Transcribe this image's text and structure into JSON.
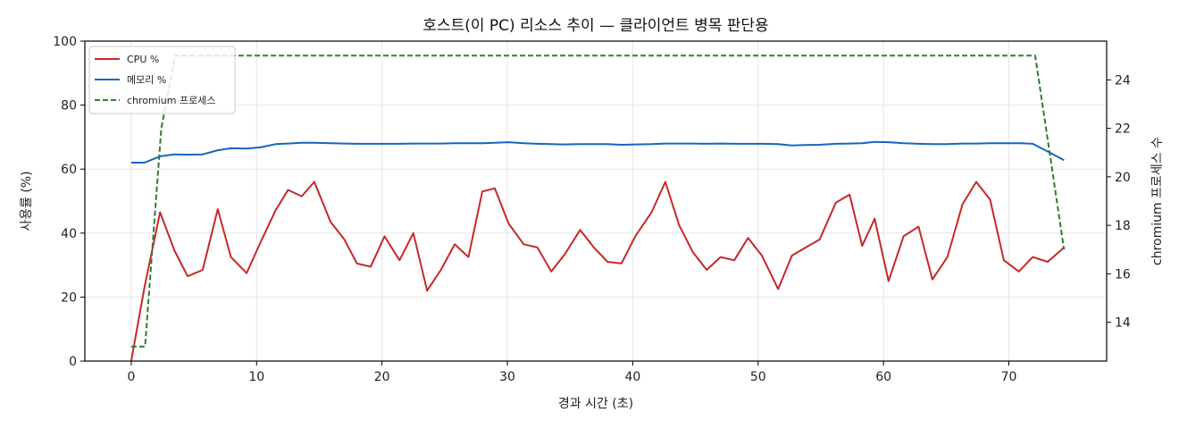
{
  "chart_data": {
    "type": "line",
    "title": "호스트(이 PC) 리소스 추이 — 클라이언트 병목 판단용",
    "xlabel": "경과 시간 (초)",
    "ylabel": "사용률 (%)",
    "y2label": "chromium 프로세스 수",
    "xlim": [
      -3.7,
      77.8
    ],
    "ylim": [
      0,
      100
    ],
    "y2lim": [
      12.4,
      25.6
    ],
    "xticks": [
      0,
      10,
      20,
      30,
      40,
      50,
      60,
      70
    ],
    "yticks": [
      0,
      20,
      40,
      60,
      80,
      100
    ],
    "y2ticks": [
      14,
      16,
      18,
      20,
      22,
      24
    ],
    "grid": true,
    "legend_position": "top-left",
    "colors": {
      "cpu": "#c62828",
      "mem": "#1565c0",
      "chromium": "#2e7d32"
    },
    "series": [
      {
        "name": "CPU %",
        "axis": "left",
        "style": "solid",
        "x": [
          0,
          1.05,
          2.3,
          3.45,
          4.5,
          5.7,
          6.9,
          7.95,
          9.2,
          10.3,
          11.5,
          12.5,
          13.6,
          14.6,
          15.9,
          17,
          18,
          19.1,
          20.2,
          21.4,
          22.5,
          23.6,
          24.7,
          25.8,
          26.9,
          28,
          29,
          30.1,
          31.3,
          32.4,
          33.5,
          34.6,
          35.8,
          36.9,
          38,
          39.1,
          40.2,
          41.5,
          42.6,
          43.7,
          44.8,
          45.9,
          47,
          48.1,
          49.2,
          50.3,
          51.6,
          52.7,
          53.8,
          54.9,
          56.2,
          57.3,
          58.3,
          59.3,
          60.4,
          61.6,
          62.8,
          63.9,
          65.1,
          66.3,
          67.4,
          68.5,
          69.6,
          70.8,
          71.9,
          73.1,
          74.4
        ],
        "y": [
          0,
          23,
          46.5,
          34.5,
          26.5,
          28.5,
          47.5,
          32.5,
          27.5,
          37,
          47,
          53.5,
          51.5,
          56,
          43.5,
          38,
          30.5,
          29.5,
          39,
          31.5,
          40,
          22,
          28.5,
          36.5,
          32.5,
          53,
          54,
          43,
          36.5,
          35.5,
          28,
          33.5,
          41,
          35.5,
          31,
          30.5,
          39,
          46.5,
          56,
          42.5,
          34,
          28.5,
          32.5,
          31.5,
          38.5,
          33,
          22.5,
          33,
          35.5,
          38,
          49.5,
          52,
          36,
          44.5,
          25,
          39,
          42,
          25.5,
          32.5,
          49,
          56,
          50.5,
          31.5,
          28,
          32.5,
          31,
          35.5
        ]
      },
      {
        "name": "메모리 %",
        "axis": "left",
        "style": "solid",
        "x": [
          0,
          1.05,
          2.3,
          3.45,
          4.5,
          5.7,
          6.9,
          7.95,
          9.2,
          10.3,
          11.5,
          12.5,
          13.6,
          14.6,
          15.9,
          17,
          18,
          19.1,
          20.2,
          21.4,
          22.5,
          23.6,
          24.7,
          25.8,
          26.9,
          28,
          29,
          30.1,
          31.3,
          32.4,
          33.5,
          34.6,
          35.8,
          36.9,
          38,
          39.1,
          40.2,
          41.5,
          42.6,
          43.7,
          44.8,
          45.9,
          47,
          48.1,
          49.2,
          50.3,
          51.6,
          52.7,
          53.8,
          54.9,
          56.2,
          57.3,
          58.3,
          59.3,
          60.4,
          61.6,
          62.8,
          63.9,
          65.1,
          66.3,
          67.4,
          68.5,
          69.6,
          70.8,
          71.9,
          73.1,
          74.4
        ],
        "y": [
          62,
          62,
          64,
          64.6,
          64.5,
          64.6,
          65.9,
          66.5,
          66.4,
          66.8,
          67.8,
          68,
          68.2,
          68.2,
          68.1,
          68,
          67.9,
          67.9,
          67.9,
          67.9,
          68,
          68,
          68,
          68.1,
          68.1,
          68.1,
          68.2,
          68.4,
          68.1,
          67.9,
          67.8,
          67.7,
          67.8,
          67.8,
          67.8,
          67.6,
          67.7,
          67.8,
          68,
          68,
          68,
          67.9,
          68,
          67.9,
          67.9,
          67.9,
          67.8,
          67.4,
          67.5,
          67.6,
          67.9,
          68,
          68.1,
          68.5,
          68.4,
          68.1,
          67.9,
          67.8,
          67.8,
          68,
          68,
          68.1,
          68.1,
          68.1,
          67.9,
          65.5,
          62.8
        ]
      },
      {
        "name": "chromium 프로세스",
        "axis": "right",
        "style": "dashed",
        "x": [
          0,
          1.1,
          2.4,
          3.5,
          72.1,
          74.4
        ],
        "y": [
          13,
          13,
          22,
          25,
          25,
          17
        ]
      }
    ]
  }
}
